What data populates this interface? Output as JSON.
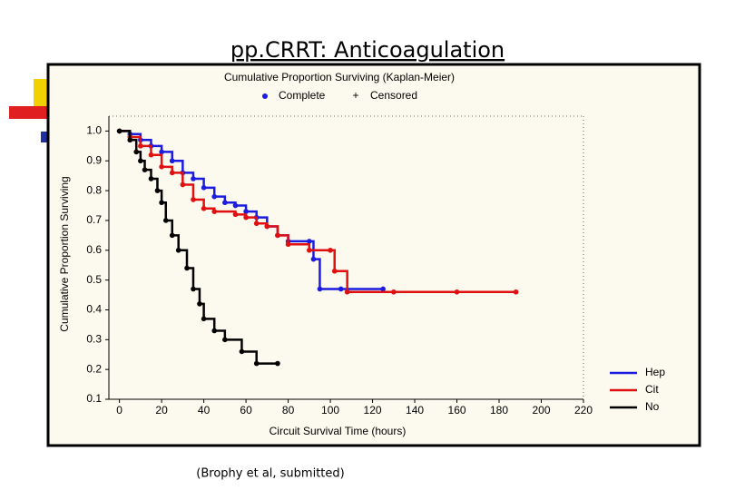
{
  "slide": {
    "title": "pp.CRRT: Anticoagulation",
    "footnote": "(Brophy et al, submitted)"
  },
  "chart_data": {
    "type": "step",
    "title": "Cumulative Proportion Surviving (Kaplan-Meier)",
    "marker_legend": [
      "Complete",
      "Censored"
    ],
    "x_label": "Circuit Survival Time (hours)",
    "y_label": "Cumulative Proportion Surviving",
    "xlim": [
      -5,
      220
    ],
    "xticks": [
      0,
      20,
      40,
      60,
      80,
      100,
      120,
      140,
      160,
      180,
      200,
      220
    ],
    "ylim": [
      0.1,
      1.05
    ],
    "yticks": [
      {
        "value": 1,
        "label": "1.0"
      },
      0.9,
      0.8,
      0.7,
      0.6,
      0.5,
      0.4,
      0.3,
      0.2,
      0.1
    ],
    "legend": "lower right",
    "series": [
      {
        "name": "Hep",
        "color": "#1c1ce0",
        "x": [
          0,
          5,
          10,
          15,
          20,
          25,
          30,
          35,
          40,
          45,
          50,
          55,
          60,
          65,
          70,
          75,
          80,
          90,
          92,
          95,
          105,
          125
        ],
        "values": [
          1.0,
          0.99,
          0.97,
          0.95,
          0.93,
          0.9,
          0.86,
          0.84,
          0.81,
          0.78,
          0.76,
          0.75,
          0.73,
          0.71,
          0.68,
          0.65,
          0.63,
          0.63,
          0.57,
          0.47,
          0.47,
          0.47
        ]
      },
      {
        "name": "Cit",
        "color": "#e01010",
        "x": [
          0,
          5,
          10,
          15,
          20,
          25,
          30,
          35,
          40,
          45,
          55,
          60,
          65,
          70,
          75,
          80,
          90,
          100,
          102,
          108,
          130,
          160,
          188
        ],
        "values": [
          1.0,
          0.98,
          0.95,
          0.92,
          0.88,
          0.86,
          0.82,
          0.77,
          0.74,
          0.73,
          0.72,
          0.71,
          0.69,
          0.68,
          0.65,
          0.62,
          0.6,
          0.6,
          0.53,
          0.46,
          0.46,
          0.46,
          0.46
        ]
      },
      {
        "name": "No",
        "color": "#000000",
        "x": [
          0,
          5,
          8,
          10,
          12,
          15,
          18,
          20,
          22,
          25,
          28,
          32,
          35,
          38,
          40,
          45,
          50,
          58,
          65,
          75
        ],
        "values": [
          1.0,
          0.97,
          0.93,
          0.9,
          0.87,
          0.84,
          0.8,
          0.76,
          0.7,
          0.65,
          0.6,
          0.54,
          0.47,
          0.42,
          0.37,
          0.33,
          0.3,
          0.26,
          0.22,
          0.22
        ]
      }
    ]
  }
}
